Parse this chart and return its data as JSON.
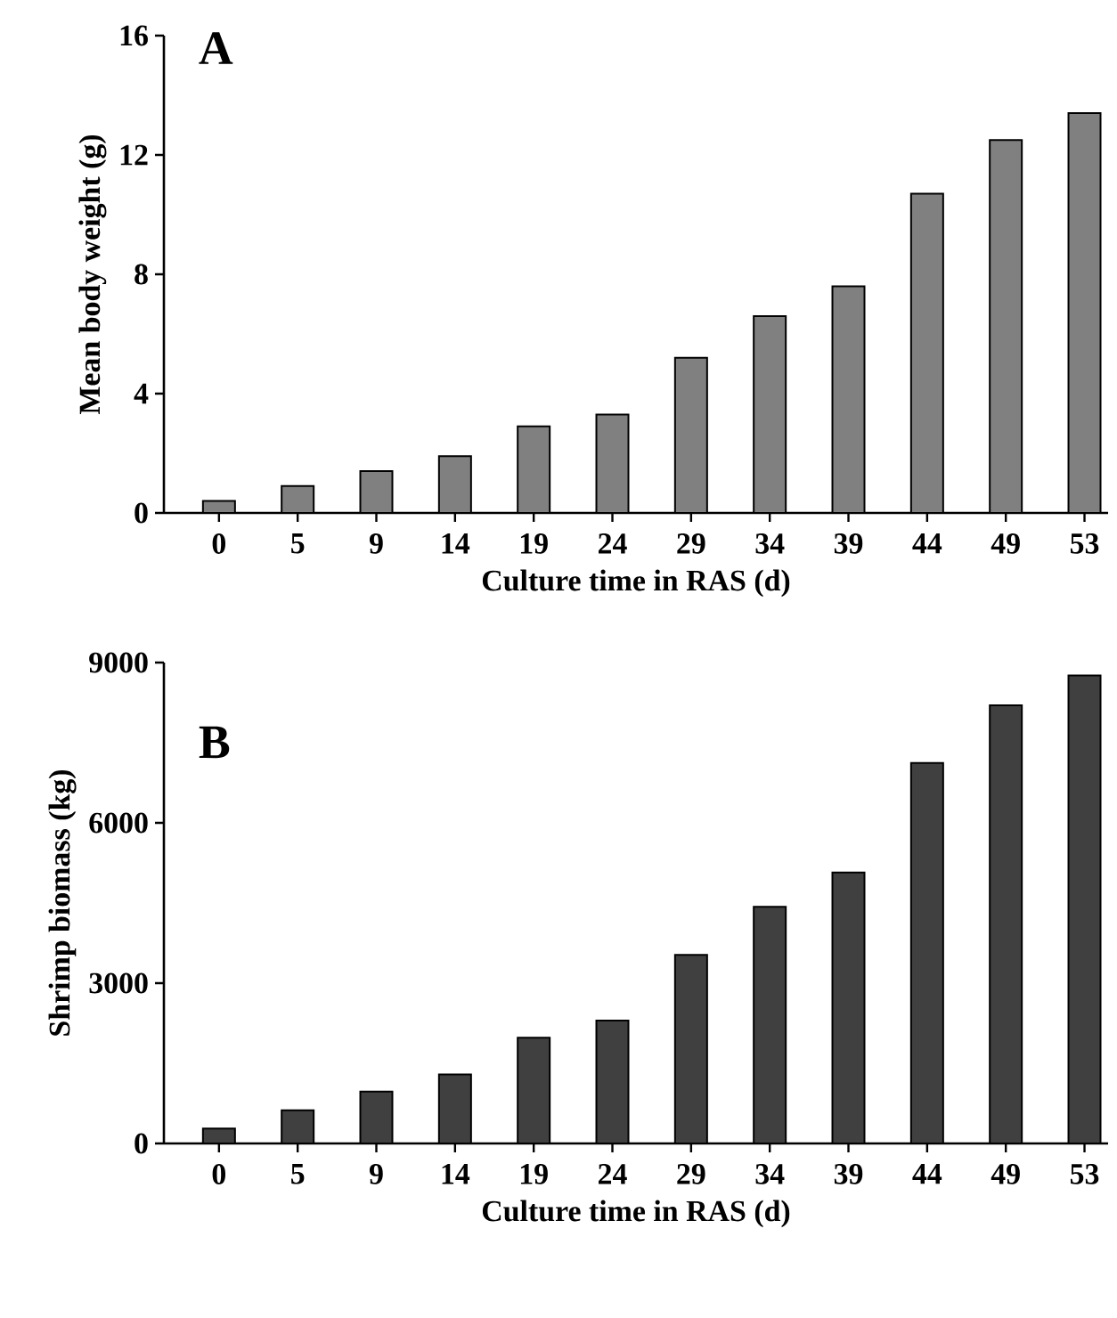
{
  "chart_data": [
    {
      "type": "bar",
      "annotations": [
        "A"
      ],
      "xlabel": "Culture time in RAS (d)",
      "ylabel": "Mean body weight (g)",
      "categories": [
        "0",
        "5",
        "9",
        "14",
        "19",
        "24",
        "29",
        "34",
        "39",
        "44",
        "49",
        "53"
      ],
      "values": [
        0.4,
        0.9,
        1.4,
        1.9,
        2.9,
        3.3,
        5.2,
        6.6,
        7.6,
        10.7,
        12.5,
        13.4
      ],
      "color": "#808080",
      "ylim": [
        0,
        16
      ],
      "yticks": [
        0,
        4,
        8,
        12,
        16
      ]
    },
    {
      "type": "bar",
      "annotations": [
        "B"
      ],
      "xlabel": "Culture time in RAS (d)",
      "ylabel": "Shrimp biomass (kg)",
      "categories": [
        "0",
        "5",
        "9",
        "14",
        "19",
        "24",
        "29",
        "34",
        "39",
        "44",
        "49",
        "53"
      ],
      "values": [
        280,
        620,
        970,
        1290,
        1980,
        2300,
        3530,
        4430,
        5070,
        7120,
        8200,
        8760
      ],
      "color": "#404040",
      "ylim": [
        0,
        9000
      ],
      "yticks": [
        0,
        3000,
        6000,
        9000
      ]
    }
  ]
}
